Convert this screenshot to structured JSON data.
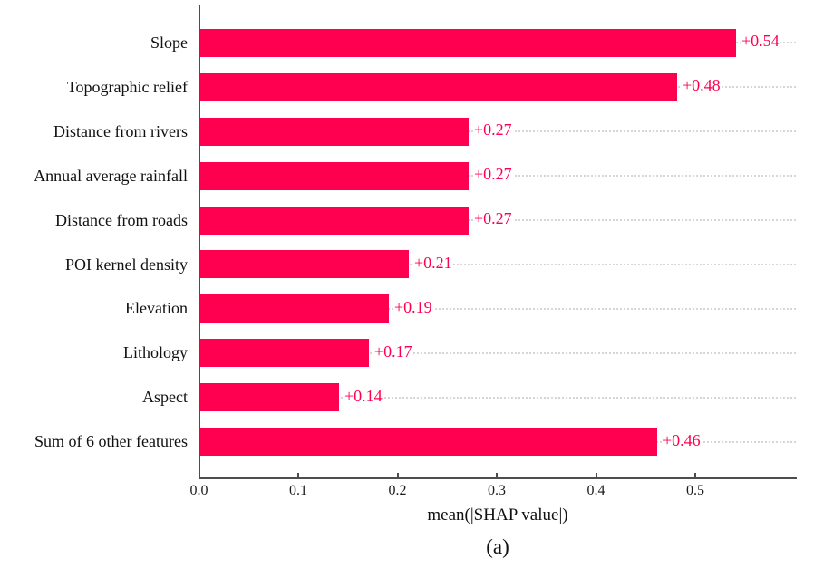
{
  "chart_data": {
    "type": "bar",
    "orientation": "horizontal",
    "xlabel": "mean(|SHAP value|)",
    "caption": "(a)",
    "categories": [
      "Slope",
      "Topographic relief",
      "Distance from rivers",
      "Annual average rainfall",
      "Distance from roads",
      "POI kernel density",
      "Elevation",
      "Lithology",
      "Aspect",
      "Sum of 6 other features"
    ],
    "values": [
      0.54,
      0.48,
      0.27,
      0.27,
      0.27,
      0.21,
      0.19,
      0.17,
      0.14,
      0.46
    ],
    "value_labels": [
      "+0.54",
      "+0.48",
      "+0.27",
      "+0.27",
      "+0.27",
      "+0.21",
      "+0.19",
      "+0.17",
      "+0.14",
      "+0.46"
    ],
    "xticks": [
      0.0,
      0.1,
      0.2,
      0.3,
      0.4,
      0.5
    ],
    "xtick_labels": [
      "0.0",
      "0.1",
      "0.2",
      "0.3",
      "0.4",
      "0.5"
    ],
    "xlim": [
      0,
      0.6
    ],
    "grid": "dotted horizontal line per bar, behind bars, full plot width",
    "legend": null,
    "colors": {
      "bar": "#ff0051",
      "value_label": "#ff0051",
      "grid": "#d6d6d6",
      "spine": "#4d4d4d",
      "tick_label": "#1a1a1a",
      "category_label": "#111111"
    }
  }
}
